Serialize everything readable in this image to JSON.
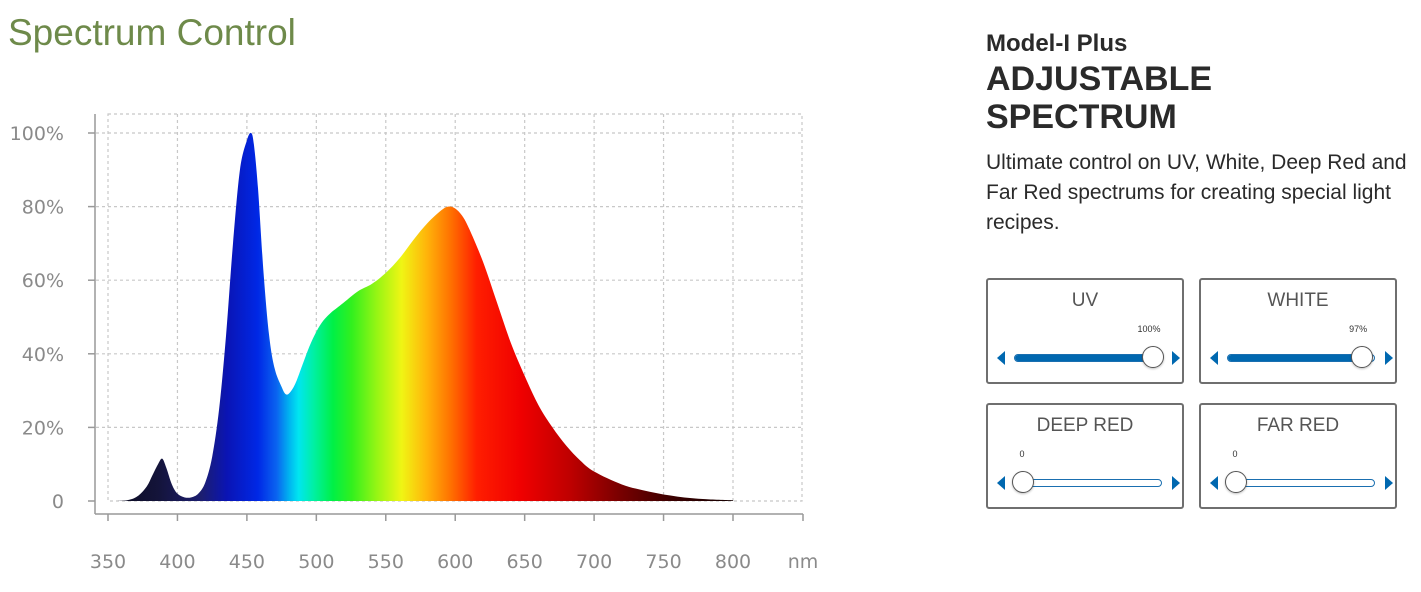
{
  "page": {
    "title": "Spectrum Control"
  },
  "product": {
    "model": "Model-I Plus",
    "headline": "ADJUSTABLE SPECTRUM",
    "description": "Ultimate control on UV, White, Deep Red and Far Red spectrums for creating special light recipes."
  },
  "channels": [
    {
      "label": "UV",
      "value": 100,
      "value_text": "100%"
    },
    {
      "label": "WHITE",
      "value": 97,
      "value_text": "97%"
    },
    {
      "label": "DEEP RED",
      "value": 0,
      "value_text": "0"
    },
    {
      "label": "FAR RED",
      "value": 0,
      "value_text": "0"
    }
  ],
  "colors": {
    "title_green": "#6e8a4a",
    "slider_blue": "#0068b0",
    "card_border": "#6f6f6f",
    "axis_gray": "#999999"
  },
  "chart_data": {
    "type": "area",
    "title": "",
    "xlabel": "nm",
    "ylabel": "",
    "xlim": [
      350,
      800
    ],
    "ylim": [
      0,
      100
    ],
    "x_ticks": [
      350,
      400,
      450,
      500,
      550,
      600,
      650,
      700,
      750,
      800
    ],
    "x_tick_labels": [
      "350",
      "400",
      "450",
      "500",
      "550",
      "600",
      "650",
      "700",
      "750",
      "800"
    ],
    "y_ticks": [
      0,
      20,
      40,
      60,
      80,
      100
    ],
    "y_tick_labels": [
      "0",
      "20%",
      "40%",
      "60%",
      "80%",
      "100%"
    ],
    "grid": true,
    "fill": "wavelength-color gradient",
    "series": [
      {
        "x": [
          355,
          365,
          372,
          378,
          382,
          386,
          389,
          392,
          396,
          400,
          405,
          410,
          415,
          420,
          425,
          430,
          435,
          440,
          445,
          450,
          453,
          455,
          458,
          462,
          466,
          470,
          475,
          478,
          481,
          485,
          490,
          495,
          500,
          505,
          510,
          515,
          520,
          530,
          540,
          550,
          560,
          570,
          580,
          590,
          595,
          600,
          605,
          610,
          620,
          630,
          640,
          650,
          660,
          670,
          680,
          690,
          700,
          720,
          740,
          760,
          780,
          800
        ],
        "values": [
          0,
          0.3,
          1.5,
          4,
          7,
          10,
          11.5,
          9,
          4.5,
          2,
          1,
          1,
          2,
          5,
          12,
          25,
          45,
          70,
          90,
          98,
          100,
          97,
          85,
          62,
          45,
          36,
          31,
          29,
          29.5,
          32,
          37,
          42,
          46,
          49,
          51,
          52.5,
          54,
          57,
          59,
          62,
          66,
          71,
          75.5,
          79,
          80,
          79.5,
          77.5,
          74,
          65,
          54,
          43,
          34,
          26,
          20,
          15,
          11,
          8,
          4.5,
          2.5,
          1.2,
          0.5,
          0.2
        ]
      }
    ]
  }
}
